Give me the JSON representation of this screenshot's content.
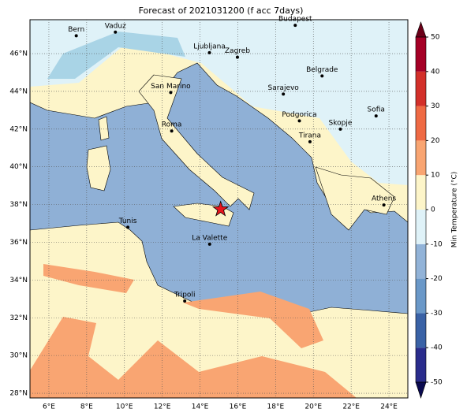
{
  "title": "Forecast of 2021031200 (f acc 7days)",
  "map": {
    "xlim": [
      5,
      25
    ],
    "ylim": [
      27.75,
      47.8
    ],
    "xticks": [
      {
        "value": 6,
        "label": "6°E"
      },
      {
        "value": 8,
        "label": "8°E"
      },
      {
        "value": 10,
        "label": "10°E"
      },
      {
        "value": 12,
        "label": "12°E"
      },
      {
        "value": 14,
        "label": "14°E"
      },
      {
        "value": 16,
        "label": "16°E"
      },
      {
        "value": 18,
        "label": "18°E"
      },
      {
        "value": 20,
        "label": "20°E"
      },
      {
        "value": 22,
        "label": "22°E"
      },
      {
        "value": 24,
        "label": "24°E"
      }
    ],
    "yticks": [
      {
        "value": 28,
        "label": "28°N"
      },
      {
        "value": 30,
        "label": "30°N"
      },
      {
        "value": 32,
        "label": "32°N"
      },
      {
        "value": 34,
        "label": "34°N"
      },
      {
        "value": 36,
        "label": "36°N"
      },
      {
        "value": 38,
        "label": "38°N"
      },
      {
        "value": 40,
        "label": "40°N"
      },
      {
        "value": 42,
        "label": "42°N"
      },
      {
        "value": 44,
        "label": "44°N"
      },
      {
        "value": 46,
        "label": "46°N"
      }
    ],
    "grid": true,
    "cities": [
      {
        "name": "Bern",
        "lon": 7.45,
        "lat": 46.95
      },
      {
        "name": "Vaduz",
        "lon": 9.52,
        "lat": 47.14
      },
      {
        "name": "Budapest",
        "lon": 19.04,
        "lat": 47.5
      },
      {
        "name": "Ljubljana",
        "lon": 14.5,
        "lat": 46.05
      },
      {
        "name": "Zagreb",
        "lon": 15.98,
        "lat": 45.81
      },
      {
        "name": "Belgrade",
        "lon": 20.46,
        "lat": 44.82
      },
      {
        "name": "San Marino",
        "lon": 12.45,
        "lat": 43.94
      },
      {
        "name": "Sarajevo",
        "lon": 18.41,
        "lat": 43.86
      },
      {
        "name": "Sofia",
        "lon": 23.32,
        "lat": 42.7
      },
      {
        "name": "Podgorica",
        "lon": 19.26,
        "lat": 42.44
      },
      {
        "name": "Skopje",
        "lon": 21.43,
        "lat": 42.0
      },
      {
        "name": "Roma",
        "lon": 12.5,
        "lat": 41.9
      },
      {
        "name": "Tirana",
        "lon": 19.82,
        "lat": 41.33
      },
      {
        "name": "Athens",
        "lon": 23.73,
        "lat": 37.98
      },
      {
        "name": "Tunis",
        "lon": 10.18,
        "lat": 36.8
      },
      {
        "name": "La Valette",
        "lon": 14.51,
        "lat": 35.9
      },
      {
        "name": "Tripoli",
        "lon": 13.19,
        "lat": 32.89
      }
    ],
    "marker": {
      "lon": 15.09,
      "lat": 37.75,
      "color": "#e8141c"
    }
  },
  "colorbar": {
    "label": "Min Temperature (°C)",
    "lim": [
      -50,
      50
    ],
    "ticks": [
      -50,
      -40,
      -30,
      -20,
      -10,
      0,
      10,
      20,
      30,
      40,
      50
    ],
    "colors": [
      "#2a2c8c",
      "#3a62a6",
      "#6a98c8",
      "#92b3d8",
      "#dff2f8",
      "#fdf5c9",
      "#f9a572",
      "#ef6a44",
      "#d3302a",
      "#a50026"
    ],
    "under": "#0a0a50",
    "over": "#6b0018"
  }
}
